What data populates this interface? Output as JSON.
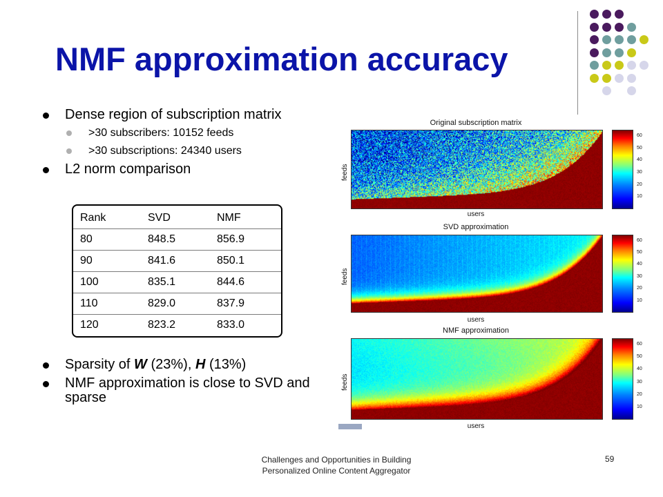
{
  "slide": {
    "title": "NMF approximation accuracy",
    "bullets_top": [
      {
        "text": "Dense region of subscription matrix",
        "sub": [
          ">30 subscribers: 10152 feeds",
          ">30 subscriptions: 24340 users"
        ]
      },
      {
        "text": "L2 norm comparison",
        "sub": []
      }
    ],
    "table": {
      "headers": [
        "Rank",
        "SVD",
        "NMF"
      ],
      "rows": [
        [
          "80",
          "848.5",
          "856.9"
        ],
        [
          "90",
          "841.6",
          "850.1"
        ],
        [
          "100",
          "835.1",
          "844.6"
        ],
        [
          "110",
          "829.0",
          "837.9"
        ],
        [
          "120",
          "823.2",
          "833.0"
        ]
      ]
    },
    "bullets_bottom": [
      {
        "parts": [
          {
            "t": "Sparsity of ",
            "style": "normal"
          },
          {
            "t": "W",
            "style": "bi"
          },
          {
            "t": " (23%), ",
            "style": "normal"
          },
          {
            "t": "H",
            "style": "bi"
          },
          {
            "t": " (13%)",
            "style": "normal"
          }
        ]
      },
      {
        "parts": [
          {
            "t": "NMF approximation is close to SVD and sparse",
            "style": "normal"
          }
        ]
      }
    ],
    "footer": {
      "line1": "Challenges and Opportunities in Building",
      "line2": "Personalized Online Content Aggregator"
    },
    "page_number": "59"
  },
  "decoration": {
    "dot_colors": {
      "purple": "#4a1a5e",
      "teal": "#6f9e9e",
      "lime": "#c9c918",
      "lavender": "#d6d6ea"
    }
  },
  "figure": {
    "panels": [
      {
        "title": "Original subscription matrix",
        "xlabel": "users",
        "ylabel": "feeds",
        "kind": "original"
      },
      {
        "title": "SVD approximation",
        "xlabel": "users",
        "ylabel": "feeds",
        "kind": "svd"
      },
      {
        "title": "NMF approximation",
        "xlabel": "users",
        "ylabel": "feeds",
        "kind": "nmf"
      }
    ],
    "colorbar_ticks": [
      "60",
      "50",
      "40",
      "30",
      "20",
      "10"
    ],
    "colorbar_range": [
      0,
      65
    ]
  }
}
